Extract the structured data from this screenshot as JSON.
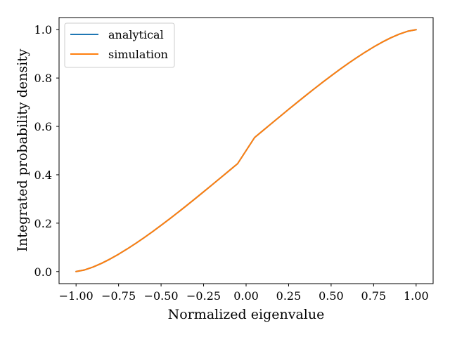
{
  "chart_data": {
    "type": "line",
    "xlabel": "Normalized eigenvalue",
    "ylabel": "Integrated probability density",
    "xlim": [
      -1.1,
      1.1
    ],
    "ylim": [
      -0.05,
      1.05
    ],
    "x_ticks": [
      -1.0,
      -0.75,
      -0.5,
      -0.25,
      0.0,
      0.25,
      0.5,
      0.75,
      1.0
    ],
    "x_tick_labels": [
      "−1.00",
      "−0.75",
      "−0.50",
      "−0.25",
      "0.00",
      "0.25",
      "0.50",
      "0.75",
      "1.00"
    ],
    "y_ticks": [
      0.0,
      0.2,
      0.4,
      0.6,
      0.8,
      1.0
    ],
    "y_tick_labels": [
      "0.0",
      "0.2",
      "0.4",
      "0.6",
      "0.8",
      "1.0"
    ],
    "grid": false,
    "legend_position": "upper-left",
    "x": [
      -1.0,
      -0.95,
      -0.9,
      -0.85,
      -0.8,
      -0.75,
      -0.7,
      -0.65,
      -0.6,
      -0.55,
      -0.5,
      -0.45,
      -0.4,
      -0.35,
      -0.3,
      -0.25,
      -0.2,
      -0.15,
      -0.1,
      -0.05,
      0.0,
      0.05,
      0.1,
      0.15,
      0.2,
      0.25,
      0.3,
      0.35,
      0.4,
      0.45,
      0.5,
      0.55,
      0.6,
      0.65,
      0.7,
      0.75,
      0.8,
      0.85,
      0.9,
      0.95,
      1.0
    ],
    "series": [
      {
        "name": "analytical",
        "color": "#1f77b4",
        "values": [
          0.0,
          0.0067,
          0.0187,
          0.034,
          0.0518,
          0.0717,
          0.0932,
          0.116,
          0.14,
          0.165,
          0.191,
          0.2176,
          0.2449,
          0.2727,
          0.301,
          0.3296,
          0.3585,
          0.3875,
          0.4167,
          0.4459,
          0.5,
          0.5541,
          0.5833,
          0.6125,
          0.6415,
          0.6704,
          0.699,
          0.7273,
          0.7551,
          0.7824,
          0.809,
          0.835,
          0.86,
          0.884,
          0.9068,
          0.9283,
          0.9482,
          0.966,
          0.9813,
          0.9933,
          1.0
        ]
      },
      {
        "name": "simulation",
        "color": "#ff7f0e",
        "values": [
          0.0,
          0.0067,
          0.0187,
          0.034,
          0.0518,
          0.0717,
          0.0932,
          0.116,
          0.14,
          0.165,
          0.191,
          0.2176,
          0.2449,
          0.2727,
          0.301,
          0.3296,
          0.3585,
          0.3875,
          0.4167,
          0.4459,
          0.5,
          0.5541,
          0.5833,
          0.6125,
          0.6415,
          0.6704,
          0.699,
          0.7273,
          0.7551,
          0.7824,
          0.809,
          0.835,
          0.86,
          0.884,
          0.9068,
          0.9283,
          0.9482,
          0.966,
          0.9813,
          0.9933,
          1.0
        ]
      }
    ]
  }
}
